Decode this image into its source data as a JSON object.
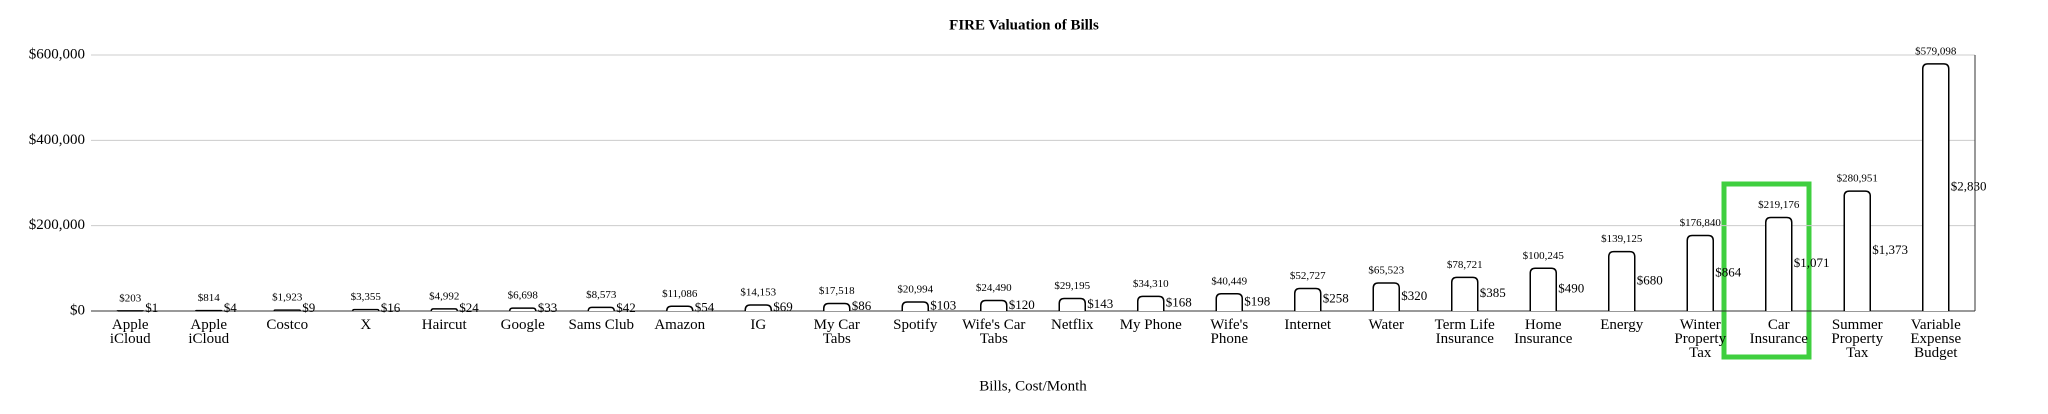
{
  "chart_data": {
    "type": "bar",
    "title": "FIRE Valuation of Bills",
    "x_label": "Bills, Cost/Month",
    "categories": [
      "Apple iCloud",
      "Apple iCloud",
      "Costco",
      "X",
      "Haircut",
      "Google",
      "Sams Club",
      "Amazon",
      "IG",
      "My Car Tabs",
      "Spotify",
      "Wife's Car Tabs",
      "Netflix",
      "My Phone",
      "Wife's Phone",
      "Internet",
      "Water",
      "Term Life Insurance",
      "Home Insurance",
      "Energy",
      "Winter Property Tax",
      "Car Insurance",
      "Summer Property Tax",
      "Variable Expense Budget"
    ],
    "values": [
      203,
      814,
      1923,
      3355,
      4992,
      6698,
      8573,
      11086,
      14153,
      17518,
      20994,
      24490,
      29195,
      34310,
      40449,
      52727,
      65523,
      78721,
      100245,
      139125,
      176840,
      219176,
      280951,
      579098
    ],
    "value_labels": [
      "$203",
      "$814",
      "$1,923",
      "$3,355",
      "$4,992",
      "$6,698",
      "$8,573",
      "$11,086",
      "$14,153",
      "$17,518",
      "$20,994",
      "$24,490",
      "$29,195",
      "$34,310",
      "$40,449",
      "$52,727",
      "$65,523",
      "$78,721",
      "$100,245",
      "$139,125",
      "$176,840",
      "$219,176",
      "$280,951",
      "$579,098"
    ],
    "cost_labels": [
      "$1",
      "$4",
      "$9",
      "$16",
      "$24",
      "$33",
      "$42",
      "$54",
      "$69",
      "$86",
      "$103",
      "$120",
      "$143",
      "$168",
      "$198",
      "$258",
      "$320",
      "$385",
      "$490",
      "$680",
      "$864",
      "$1,071",
      "$1,373",
      "$2,830"
    ],
    "color": "#ffffff",
    "ylim": [
      0,
      600000
    ],
    "yticks": [
      {
        "value": 0,
        "label": "$0"
      },
      {
        "value": 200000,
        "label": "$200,000"
      },
      {
        "value": 400000,
        "label": "$400,000"
      },
      {
        "value": 600000,
        "label": "$600,000"
      }
    ],
    "grid": true
  }
}
